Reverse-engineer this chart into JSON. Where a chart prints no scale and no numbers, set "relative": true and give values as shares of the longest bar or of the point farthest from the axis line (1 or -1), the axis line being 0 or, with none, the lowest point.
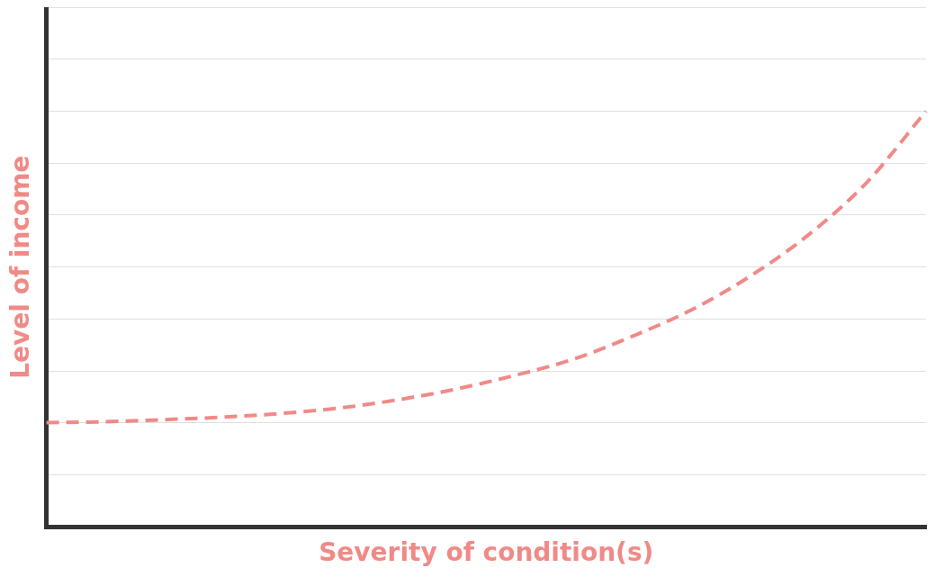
{
  "chart_data": {
    "type": "line",
    "relative": true,
    "xlabel": "Severity of condition(s)",
    "ylabel": "Level of income",
    "categories": [
      null,
      null,
      null,
      null,
      null,
      null,
      null,
      null,
      null,
      null,
      null,
      null,
      null,
      null,
      null,
      null
    ],
    "series": [
      {
        "color": "#f08a87",
        "values": [
          0.251,
          0.253,
          0.258,
          0.264,
          0.273,
          0.286,
          0.306,
          0.332,
          0.365,
          0.404,
          0.459,
          0.522,
          0.603,
          0.703,
          0.83,
          1
        ]
      }
    ],
    "grid": "y",
    "legend": false,
    "marker": "none",
    "line_style": "dashed"
  }
}
